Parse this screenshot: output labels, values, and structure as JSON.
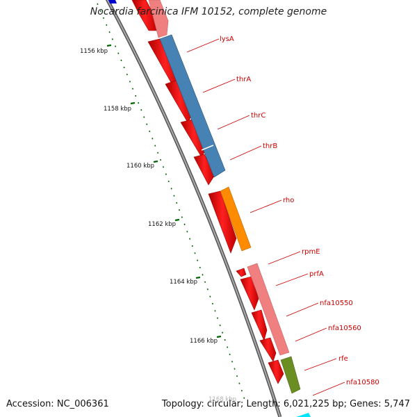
{
  "title": "Nocardia farcinica IFM 10152, complete genome",
  "accession_text": "Accession: NC_006361",
  "summary_text": "Topology: circular; Length: 6,021,225 bp; Genes: 5,747",
  "ruler": {
    "labels": [
      "1156 kbp",
      "1158 kbp",
      "1160 kbp",
      "1162 kbp",
      "1164 kbp",
      "1166 kbp",
      "1168 kbp"
    ]
  },
  "gene_labels": [
    "lysA",
    "thrA",
    "thrC",
    "thrB",
    "rho",
    "rpmE",
    "prfA",
    "nfa10550",
    "nfa10560",
    "rfe",
    "nfa10580"
  ],
  "colors": {
    "forward_feature": "#ff0000",
    "cog_pink": "#f08080",
    "cog_blue": "#4682b4",
    "cog_orange": "#ff8c00",
    "cog_olive": "#6b8e23",
    "backbone": "#808080",
    "ruler_ticks": "#006400",
    "label_text": "#cc0000"
  }
}
